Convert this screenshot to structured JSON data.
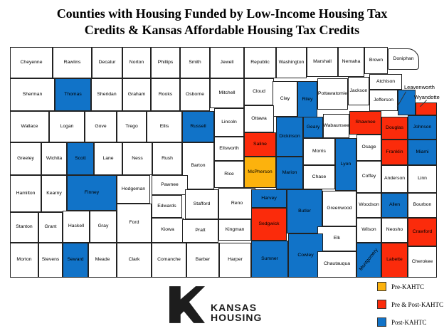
{
  "title": {
    "line1": "Counties with Housing Funded by Low-Income Housing Tax",
    "line2": "Credits & Kansas Affordable Housing Tax Credits"
  },
  "colors": {
    "none": "#FFFFFF",
    "pre": "#FCB20D",
    "prepost": "#FB2B0B",
    "post": "#1173C8",
    "border": "#222222"
  },
  "legend": {
    "items": [
      {
        "label": "Pre-KAHTC",
        "status": "pre"
      },
      {
        "label": "Pre & Post-KAHTC",
        "status": "prepost"
      },
      {
        "label": "Post-KAHTC",
        "status": "post"
      }
    ]
  },
  "callouts": [
    {
      "label": "Leavenworth"
    },
    {
      "label": "Wyandotte"
    }
  ],
  "logo": {
    "line1": "KANSAS",
    "line2": "HOUSING"
  },
  "map": {
    "counties": [
      [
        "Cheyenne",
        "none",
        0,
        2,
        60,
        44
      ],
      [
        "Rawlins",
        "none",
        60,
        2,
        55,
        44
      ],
      [
        "Decatur",
        "none",
        115,
        2,
        43,
        44
      ],
      [
        "Norton",
        "none",
        158,
        2,
        40,
        44
      ],
      [
        "Phillips",
        "none",
        198,
        2,
        41,
        44
      ],
      [
        "Smith",
        "none",
        239,
        2,
        42,
        44
      ],
      [
        "Jewell",
        "none",
        281,
        2,
        48,
        44
      ],
      [
        "Republic",
        "none",
        329,
        2,
        45,
        44
      ],
      [
        "Washington",
        "none",
        374,
        2,
        43,
        44
      ],
      [
        "Marshall",
        "none",
        417,
        2,
        44,
        42
      ],
      [
        "Nemaha",
        "none",
        461,
        2,
        37,
        42
      ],
      [
        "Brown",
        "none",
        498,
        2,
        33,
        38
      ],
      [
        "Doniphan",
        "none",
        531,
        4,
        44,
        30,
        "ne"
      ],
      [
        "Sherman",
        "none",
        0,
        46,
        63,
        46
      ],
      [
        "Thomas",
        "post",
        63,
        46,
        51,
        46
      ],
      [
        "Sheridan",
        "none",
        114,
        46,
        44,
        46
      ],
      [
        "Graham",
        "none",
        158,
        46,
        40,
        46
      ],
      [
        "Rooks",
        "none",
        198,
        46,
        41,
        46
      ],
      [
        "Osborne",
        "none",
        239,
        46,
        42,
        46
      ],
      [
        "Mitchell",
        "none",
        281,
        46,
        48,
        42
      ],
      [
        "Cloud",
        "none",
        329,
        46,
        42,
        38
      ],
      [
        "Clay",
        "none",
        369,
        50,
        35,
        50
      ],
      [
        "Riley",
        "post",
        404,
        50,
        28,
        52
      ],
      [
        "Pottawatomie",
        "none",
        432,
        46,
        43,
        44
      ],
      [
        "Jackson",
        "none",
        475,
        44,
        30,
        40
      ],
      [
        "Atchison",
        "none",
        505,
        40,
        46,
        22
      ],
      [
        "Jefferson",
        "none",
        505,
        62,
        40,
        30
      ],
      [
        "Leavenworth",
        "post",
        545,
        62,
        25,
        36,
        "nolabel"
      ],
      [
        "Wyandotte",
        "prepost",
        570,
        80,
        30,
        18,
        "nolabel"
      ],
      [
        "Wallace",
        "none",
        0,
        92,
        55,
        44
      ],
      [
        "Logan",
        "none",
        55,
        92,
        50,
        44
      ],
      [
        "Gove",
        "none",
        105,
        92,
        45,
        44
      ],
      [
        "Trego",
        "none",
        150,
        92,
        42,
        44
      ],
      [
        "Ellis",
        "none",
        192,
        92,
        50,
        44
      ],
      [
        "Russell",
        "post",
        242,
        92,
        45,
        44
      ],
      [
        "Lincoln",
        "none",
        287,
        88,
        42,
        40
      ],
      [
        "Ottawa",
        "none",
        329,
        84,
        42,
        38
      ],
      [
        "Ellsworth",
        "none",
        287,
        128,
        42,
        34
      ],
      [
        "Saline",
        "prepost",
        329,
        122,
        45,
        34
      ],
      [
        "Dickinson",
        "post",
        374,
        100,
        38,
        56
      ],
      [
        "Geary",
        "post",
        412,
        100,
        28,
        30
      ],
      [
        "Wabaunsee",
        "none",
        440,
        96,
        37,
        34
      ],
      [
        "Shawnee",
        "prepost",
        477,
        92,
        45,
        33
      ],
      [
        "Douglas",
        "prepost",
        522,
        100,
        37,
        32
      ],
      [
        "Johnson",
        "post",
        559,
        98,
        41,
        34
      ],
      [
        "Greeley",
        "none",
        0,
        136,
        44,
        46
      ],
      [
        "Wichita",
        "none",
        44,
        136,
        36,
        46
      ],
      [
        "Scott",
        "post",
        80,
        136,
        38,
        46
      ],
      [
        "Lane",
        "none",
        118,
        136,
        40,
        46
      ],
      [
        "Ness",
        "none",
        158,
        136,
        42,
        46
      ],
      [
        "Rush",
        "none",
        200,
        136,
        42,
        46
      ],
      [
        "Barton",
        "none",
        242,
        136,
        45,
        66
      ],
      [
        "Rice",
        "none",
        287,
        162,
        42,
        38
      ],
      [
        "McPherson",
        "pre",
        329,
        156,
        45,
        44
      ],
      [
        "Marion",
        "post",
        374,
        156,
        38,
        46
      ],
      [
        "Morris",
        "none",
        412,
        130,
        45,
        38
      ],
      [
        "Chase",
        "none",
        412,
        168,
        45,
        34
      ],
      [
        "Lyon",
        "post",
        457,
        130,
        30,
        74
      ],
      [
        "Osage",
        "none",
        487,
        125,
        35,
        37
      ],
      [
        "Franklin",
        "prepost",
        522,
        132,
        37,
        36
      ],
      [
        "Miami",
        "post",
        559,
        132,
        41,
        36
      ],
      [
        "Coffey",
        "none",
        487,
        162,
        35,
        45
      ],
      [
        "Anderson",
        "none",
        522,
        168,
        37,
        39
      ],
      [
        "Linn",
        "none",
        559,
        168,
        41,
        39
      ],
      [
        "Hamilton",
        "none",
        0,
        182,
        44,
        52
      ],
      [
        "Kearny",
        "none",
        44,
        182,
        36,
        52
      ],
      [
        "Finney",
        "post",
        80,
        182,
        70,
        50
      ],
      [
        "Hodgeman",
        "none",
        150,
        182,
        47,
        40
      ],
      [
        "Pawnee",
        "none",
        199,
        182,
        51,
        28
      ],
      [
        "Stafford",
        "none",
        246,
        202,
        47,
        42
      ],
      [
        "Reno",
        "none",
        293,
        200,
        52,
        44
      ],
      [
        "Harvey",
        "post",
        339,
        202,
        50,
        26
      ],
      [
        "Sedgwick",
        "prepost",
        339,
        228,
        50,
        46
      ],
      [
        "Butler",
        "post",
        389,
        202,
        50,
        62
      ],
      [
        "Greenwood",
        "none",
        439,
        204,
        48,
        50
      ],
      [
        "Woodson",
        "none",
        487,
        207,
        35,
        35
      ],
      [
        "Allen",
        "post",
        522,
        207,
        37,
        35
      ],
      [
        "Bourbon",
        "none",
        559,
        207,
        41,
        35
      ],
      [
        "Stanton",
        "none",
        0,
        234,
        40,
        43
      ],
      [
        "Grant",
        "none",
        40,
        234,
        34,
        43
      ],
      [
        "Haskell",
        "none",
        74,
        232,
        38,
        45
      ],
      [
        "Gray",
        "none",
        112,
        232,
        38,
        45
      ],
      [
        "Ford",
        "none",
        150,
        222,
        49,
        55
      ],
      [
        "Edwards",
        "none",
        199,
        210,
        43,
        32
      ],
      [
        "Kiowa",
        "none",
        199,
        242,
        45,
        35
      ],
      [
        "Pratt",
        "none",
        242,
        244,
        51,
        33
      ],
      [
        "Kingman",
        "none",
        293,
        244,
        46,
        30
      ],
      [
        "Wilson",
        "none",
        487,
        242,
        35,
        35
      ],
      [
        "Neosho",
        "none",
        522,
        242,
        37,
        35
      ],
      [
        "Crawford",
        "prepost",
        559,
        242,
        41,
        40
      ],
      [
        "Elk",
        "none",
        432,
        254,
        55,
        35
      ],
      [
        "Morton",
        "none",
        0,
        277,
        40,
        49
      ],
      [
        "Stevens",
        "none",
        40,
        277,
        34,
        49
      ],
      [
        "Seward",
        "post",
        74,
        277,
        36,
        49
      ],
      [
        "Meade",
        "none",
        110,
        277,
        40,
        49
      ],
      [
        "Clark",
        "none",
        150,
        277,
        49,
        49
      ],
      [
        "Comanche",
        "none",
        199,
        277,
        49,
        49
      ],
      [
        "Barber",
        "none",
        248,
        277,
        46,
        49
      ],
      [
        "Harper",
        "none",
        294,
        277,
        45,
        49
      ],
      [
        "Sumner",
        "post",
        339,
        274,
        52,
        52
      ],
      [
        "Cowley",
        "post",
        391,
        264,
        49,
        62
      ],
      [
        "Chautauqua",
        "none",
        432,
        289,
        55,
        37
      ],
      [
        "Montgomery",
        "post",
        487,
        277,
        35,
        49,
        "rot"
      ],
      [
        "Labette",
        "prepost",
        522,
        277,
        37,
        49
      ],
      [
        "Cherokee",
        "none",
        559,
        282,
        41,
        44
      ]
    ]
  }
}
